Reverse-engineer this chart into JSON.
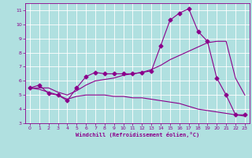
{
  "background_color": "#b0e0e0",
  "grid_color": "#ffffff",
  "line_color": "#8b008b",
  "marker": "D",
  "marker_size": 2.5,
  "xlabel": "Windchill (Refroidissement éolien,°C)",
  "xlim": [
    -0.5,
    23.5
  ],
  "ylim": [
    3.0,
    11.5
  ],
  "xticks": [
    0,
    1,
    2,
    3,
    4,
    5,
    6,
    7,
    8,
    9,
    10,
    11,
    12,
    13,
    14,
    15,
    16,
    17,
    18,
    19,
    20,
    21,
    22,
    23
  ],
  "yticks": [
    3,
    4,
    5,
    6,
    7,
    8,
    9,
    10,
    11
  ],
  "series1_x": [
    0,
    1,
    2,
    3,
    4,
    5,
    6,
    7,
    8,
    9,
    10,
    11,
    12,
    13,
    14,
    15,
    16,
    17,
    18,
    19,
    20,
    21,
    22,
    23
  ],
  "series1_y": [
    5.5,
    5.7,
    5.1,
    5.0,
    4.6,
    5.5,
    6.3,
    6.6,
    6.5,
    6.5,
    6.5,
    6.5,
    6.6,
    6.7,
    8.5,
    10.3,
    10.8,
    11.1,
    9.5,
    8.8,
    6.2,
    5.0,
    3.6,
    3.6
  ],
  "series2_x": [
    0,
    1,
    2,
    3,
    4,
    5,
    6,
    7,
    8,
    9,
    10,
    11,
    12,
    13,
    14,
    15,
    16,
    17,
    18,
    19,
    20,
    21,
    22,
    23
  ],
  "series2_y": [
    5.5,
    5.5,
    5.5,
    5.2,
    5.0,
    5.3,
    5.7,
    6.0,
    6.1,
    6.2,
    6.4,
    6.5,
    6.6,
    6.8,
    7.1,
    7.5,
    7.8,
    8.1,
    8.4,
    8.7,
    8.8,
    8.8,
    6.2,
    5.0
  ],
  "series3_x": [
    0,
    1,
    2,
    3,
    4,
    5,
    6,
    7,
    8,
    9,
    10,
    11,
    12,
    13,
    14,
    15,
    16,
    17,
    18,
    19,
    20,
    21,
    22,
    23
  ],
  "series3_y": [
    5.5,
    5.4,
    5.2,
    5.0,
    4.7,
    4.9,
    5.0,
    5.0,
    5.0,
    4.9,
    4.9,
    4.8,
    4.8,
    4.7,
    4.6,
    4.5,
    4.4,
    4.2,
    4.0,
    3.9,
    3.8,
    3.7,
    3.6,
    3.5
  ]
}
